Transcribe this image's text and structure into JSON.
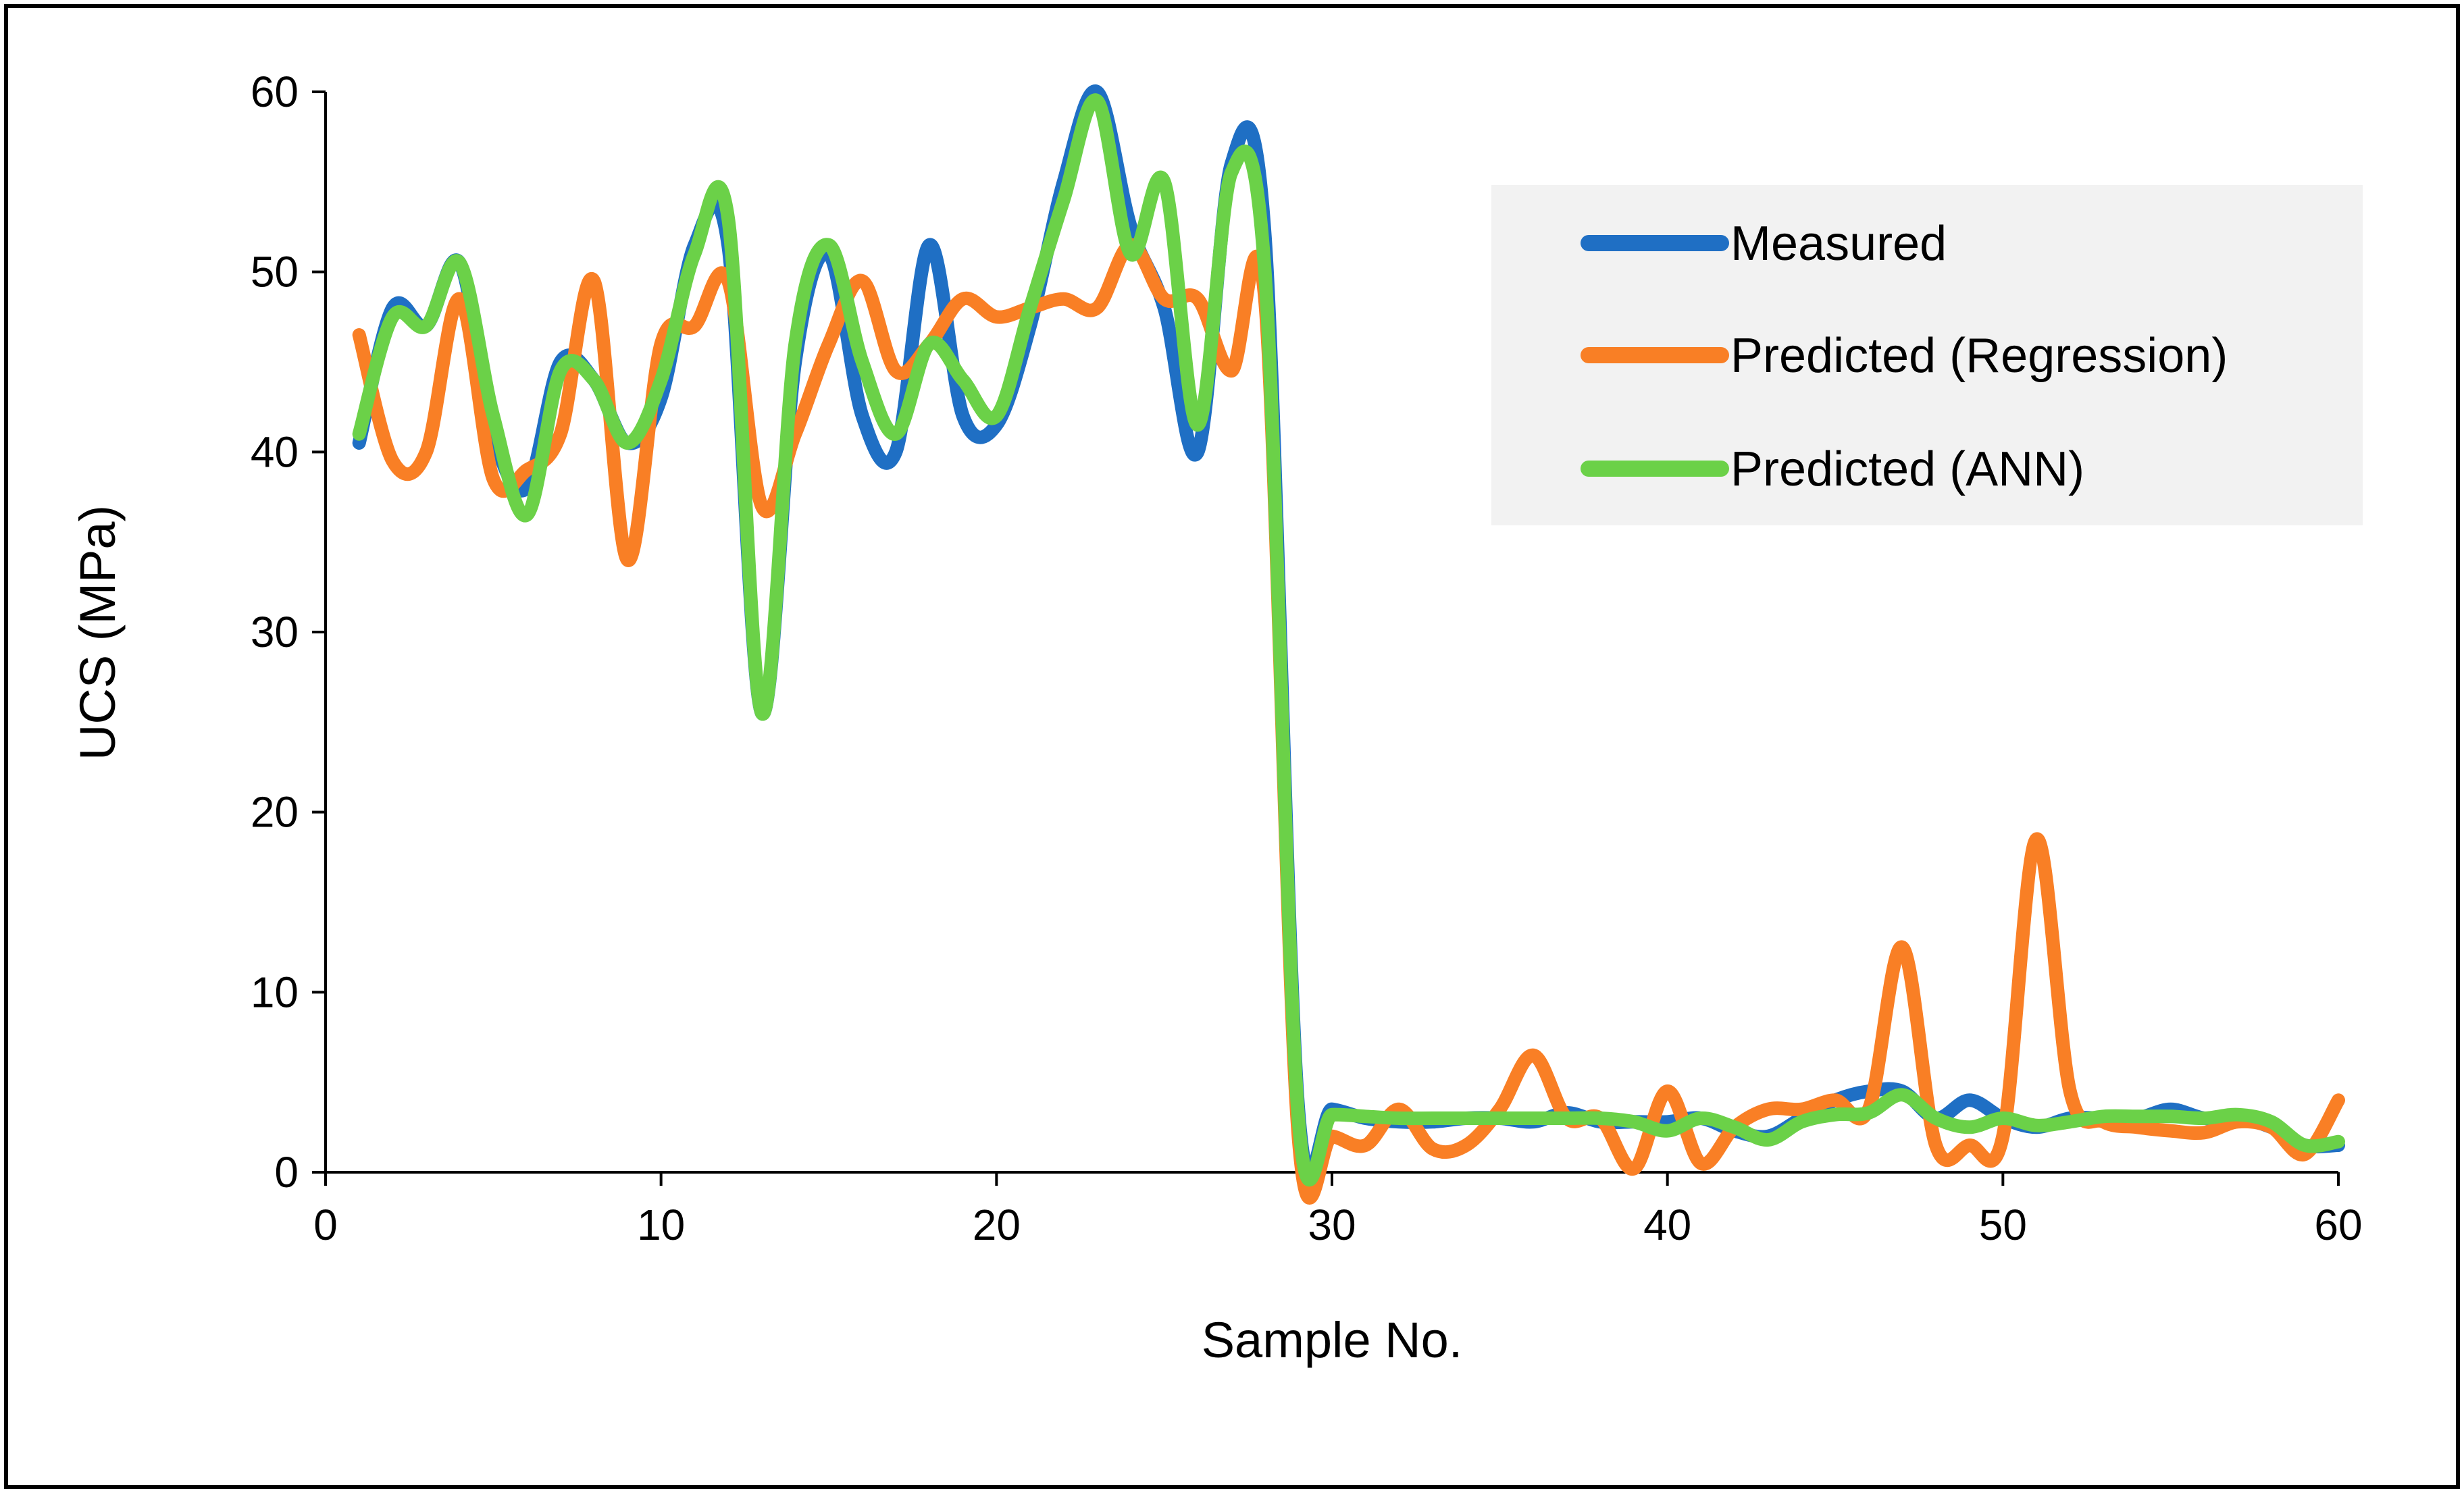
{
  "chart_data": {
    "type": "line",
    "title": "",
    "xlabel": "Sample No.",
    "ylabel": "UCS (MPa)",
    "xlim": [
      0,
      60
    ],
    "ylim": [
      0,
      60
    ],
    "xticks": [
      0,
      10,
      20,
      30,
      40,
      50,
      60
    ],
    "yticks": [
      0,
      10,
      20,
      30,
      40,
      50,
      60
    ],
    "grid": false,
    "legend_position": "top-right",
    "x": [
      1,
      2,
      3,
      4,
      5,
      6,
      7,
      8,
      9,
      10,
      11,
      12,
      13,
      14,
      15,
      16,
      17,
      18,
      19,
      20,
      21,
      22,
      23,
      24,
      25,
      26,
      27,
      28,
      29,
      30,
      31,
      32,
      33,
      34,
      35,
      36,
      37,
      38,
      39,
      40,
      41,
      42,
      43,
      44,
      45,
      46,
      47,
      48,
      49,
      50,
      51,
      52,
      53,
      54,
      55,
      56,
      57,
      58,
      59,
      60
    ],
    "series": [
      {
        "name": "Measured",
        "color": "#1f6fc4",
        "values": [
          40.5,
          48.0,
          47.0,
          50.5,
          41.0,
          38.0,
          45.0,
          44.0,
          40.5,
          43.0,
          51.5,
          51.5,
          25.5,
          45.0,
          51.0,
          42.0,
          40.0,
          51.5,
          42.0,
          41.5,
          47.0,
          55.0,
          60.0,
          52.5,
          48.0,
          40.0,
          56.0,
          52.0,
          3.5,
          3.5,
          3.0,
          2.8,
          2.8,
          3.0,
          3.0,
          2.8,
          3.3,
          2.8,
          2.8,
          2.8,
          3.0,
          2.3,
          2.0,
          3.0,
          4.0,
          4.5,
          4.5,
          3.0,
          4.0,
          3.0,
          2.5,
          3.0,
          3.0,
          3.0,
          3.5,
          3.0,
          3.0,
          2.5,
          1.5,
          1.5
        ]
      },
      {
        "name": "Predicted (Regression)",
        "color": "#f97f25",
        "values": [
          46.5,
          39.5,
          40.0,
          48.5,
          38.5,
          39.0,
          41.0,
          49.5,
          34.0,
          46.0,
          47.0,
          49.5,
          37.0,
          41.0,
          46.0,
          49.5,
          44.5,
          46.0,
          48.5,
          47.5,
          48.0,
          48.5,
          48.0,
          51.5,
          48.5,
          48.5,
          44.5,
          48.5,
          2.0,
          2.0,
          1.5,
          3.5,
          1.3,
          1.5,
          3.5,
          6.5,
          3.0,
          3.0,
          0.2,
          4.5,
          0.5,
          2.5,
          3.5,
          3.5,
          4.0,
          3.5,
          12.5,
          1.5,
          1.5,
          2.0,
          18.5,
          4.5,
          2.8,
          2.5,
          2.3,
          2.2,
          2.8,
          2.5,
          1.0,
          4.0
        ]
      },
      {
        "name": "Predicted (ANN)",
        "color": "#6bd148",
        "values": [
          41.0,
          47.5,
          47.0,
          50.5,
          42.0,
          36.5,
          44.5,
          44.0,
          40.5,
          44.0,
          51.0,
          53.0,
          25.5,
          46.0,
          51.5,
          45.0,
          41.0,
          46.0,
          44.0,
          42.0,
          48.0,
          54.0,
          59.5,
          51.0,
          55.0,
          41.5,
          55.5,
          50.0,
          3.0,
          3.2,
          3.1,
          3.0,
          3.0,
          3.0,
          3.0,
          3.0,
          3.0,
          3.0,
          2.8,
          2.3,
          3.0,
          2.5,
          1.8,
          2.8,
          3.2,
          3.3,
          4.3,
          3.0,
          2.5,
          3.0,
          2.6,
          2.8,
          3.1,
          3.1,
          3.1,
          3.0,
          3.2,
          2.8,
          1.5,
          1.7
        ]
      }
    ]
  }
}
